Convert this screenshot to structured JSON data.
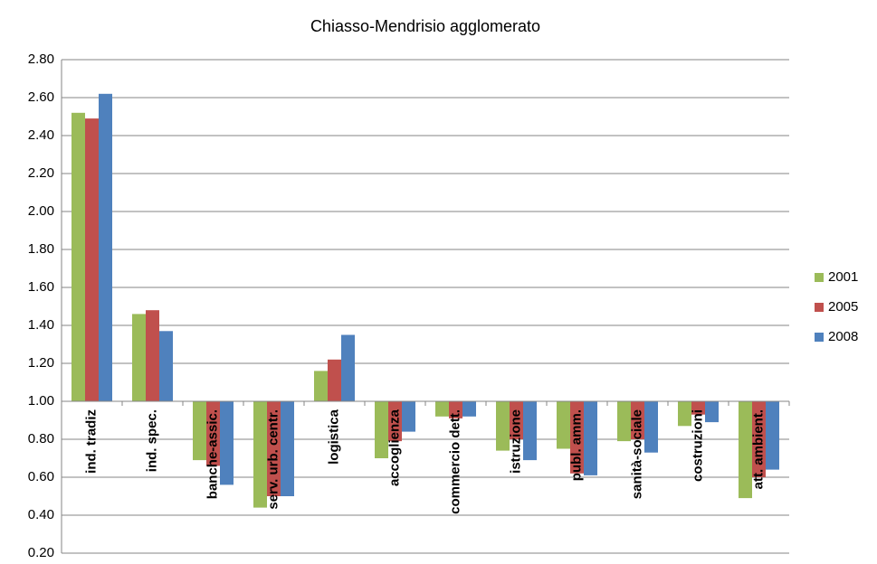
{
  "chart_data": {
    "type": "bar",
    "title": "Chiasso-Mendrisio agglomerato",
    "categories": [
      "ind. tradiz",
      "ind. spec.",
      "banche-assic.",
      "serv. urb. centr.",
      "logistica",
      "accoglienza",
      "commercio dett.",
      "istruzione",
      "publ. amm.",
      "sanità-sociale",
      "costruzioni",
      "att. ambient."
    ],
    "series": [
      {
        "name": "2001",
        "color": "#9bbb59",
        "values": [
          2.52,
          1.46,
          0.69,
          0.44,
          1.16,
          0.7,
          0.92,
          0.74,
          0.75,
          0.79,
          0.87,
          0.49
        ]
      },
      {
        "name": "2005",
        "color": "#c0504d",
        "values": [
          2.49,
          1.48,
          0.66,
          0.5,
          1.22,
          0.79,
          0.91,
          0.8,
          0.62,
          0.8,
          0.93,
          0.6
        ]
      },
      {
        "name": "2008",
        "color": "#4f81bd",
        "values": [
          2.62,
          1.37,
          0.56,
          0.5,
          1.35,
          0.84,
          0.92,
          0.69,
          0.61,
          0.73,
          0.89,
          0.64
        ]
      }
    ],
    "ylim": [
      0.2,
      2.8
    ],
    "yticks": [
      {
        "value": 0.2,
        "label": "0.20"
      },
      {
        "value": 0.4,
        "label": "0.40"
      },
      {
        "value": 0.6,
        "label": "0.60"
      },
      {
        "value": 0.8,
        "label": "0.80"
      },
      {
        "value": 1.0,
        "label": "1.00"
      },
      {
        "value": 1.2,
        "label": "1.20"
      },
      {
        "value": 1.4,
        "label": "1.40"
      },
      {
        "value": 1.6,
        "label": "1.60"
      },
      {
        "value": 1.8,
        "label": "1.80"
      },
      {
        "value": 2.0,
        "label": "2.00"
      },
      {
        "value": 2.2,
        "label": "2.20"
      },
      {
        "value": 2.4,
        "label": "2.40"
      },
      {
        "value": 2.6,
        "label": "2.60"
      },
      {
        "value": 2.8,
        "label": "2.80"
      }
    ],
    "baseline": 1,
    "grid": true,
    "legend": "right"
  }
}
